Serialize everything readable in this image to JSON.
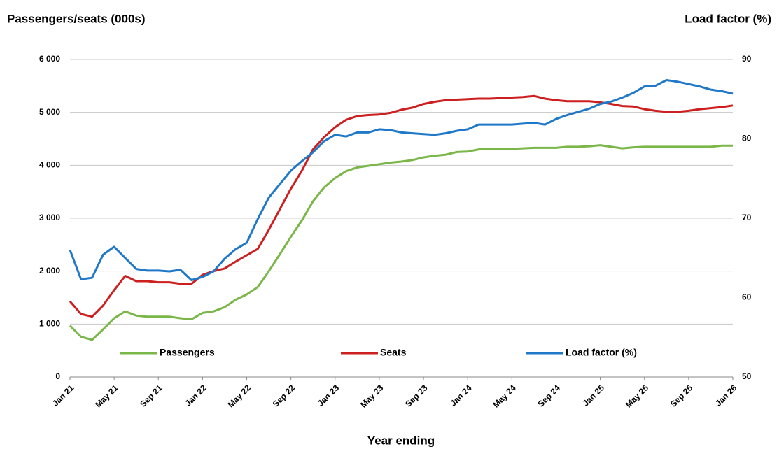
{
  "chart_data": {
    "type": "line",
    "y_label": "Passengers/seats (000s)",
    "y2_label": "Load factor (%)",
    "x_label": "Year ending",
    "categories": [
      "Jan 21",
      null,
      null,
      null,
      "May 21",
      null,
      null,
      null,
      "Sep 21",
      null,
      null,
      null,
      "Jan 22",
      null,
      null,
      null,
      "May 22",
      null,
      null,
      null,
      "Sep 22",
      null,
      null,
      null,
      "Jan 23",
      null,
      null,
      null,
      "May 23",
      null,
      null,
      null,
      "Sep 23",
      null,
      null,
      null,
      "Jan 24",
      null,
      null,
      null,
      "May 24",
      null,
      null,
      null,
      "Sep 24",
      null,
      null,
      null,
      "Jan 25",
      null,
      null,
      null,
      "May 25",
      null,
      null,
      null,
      "Sep 25",
      null,
      null,
      null,
      "Jan 26"
    ],
    "series": [
      {
        "name": "Passengers",
        "color": "#7ab648",
        "values": [
          970,
          760,
          700,
          900,
          1110,
          1240,
          1160,
          1140,
          1140,
          1140,
          1110,
          1090,
          1210,
          1240,
          1320,
          1460,
          1560,
          1700,
          2000,
          2320,
          2650,
          2960,
          3320,
          3580,
          3760,
          3890,
          3960,
          3990,
          4020,
          4050,
          4070,
          4100,
          4150,
          4180,
          4200,
          4250,
          4260,
          4300,
          4310,
          4310,
          4310,
          4320,
          4330,
          4330,
          4330,
          4350,
          4350,
          4360,
          4380,
          4350,
          4320,
          4340,
          4350,
          4350,
          4350,
          4350,
          4350,
          4350,
          4350,
          4370,
          4370
        ]
      },
      {
        "name": "Seats",
        "color": "#cc1f1f",
        "values": [
          1430,
          1190,
          1140,
          1350,
          1640,
          1910,
          1810,
          1810,
          1790,
          1790,
          1760,
          1760,
          1930,
          2000,
          2050,
          2180,
          2300,
          2420,
          2780,
          3170,
          3560,
          3900,
          4300,
          4530,
          4720,
          4860,
          4930,
          4950,
          4960,
          4990,
          5050,
          5090,
          5160,
          5200,
          5230,
          5240,
          5250,
          5260,
          5260,
          5270,
          5280,
          5290,
          5310,
          5260,
          5230,
          5210,
          5210,
          5210,
          5190,
          5160,
          5120,
          5110,
          5060,
          5030,
          5010,
          5010,
          5030,
          5060,
          5080,
          5100,
          5130
        ]
      },
      {
        "name": "Load factor (%)",
        "color": "#1f78c8",
        "axis": "y2",
        "values": [
          66.0,
          62.3,
          62.5,
          65.4,
          66.4,
          65.0,
          63.6,
          63.4,
          63.4,
          63.3,
          63.5,
          62.2,
          62.6,
          63.3,
          64.9,
          66.1,
          66.9,
          69.9,
          72.6,
          74.3,
          76.0,
          77.2,
          78.3,
          79.7,
          80.5,
          80.3,
          80.8,
          80.8,
          81.2,
          81.1,
          80.8,
          80.7,
          80.6,
          80.5,
          80.7,
          81.0,
          81.2,
          81.8,
          81.8,
          81.8,
          81.8,
          81.9,
          82.0,
          81.8,
          82.5,
          83.0,
          83.4,
          83.8,
          84.4,
          84.7,
          85.2,
          85.8,
          86.6,
          86.7,
          87.4,
          87.2,
          86.9,
          86.6,
          86.2,
          86.0,
          85.7
        ]
      }
    ],
    "ylim": [
      0,
      6000
    ],
    "yticks": [
      0,
      {
        "value": 1000,
        "label": "1 000"
      },
      {
        "value": 2000,
        "label": "2 000"
      },
      {
        "value": 3000,
        "label": "3 000"
      },
      {
        "value": 4000,
        "label": "4 000"
      },
      {
        "value": 5000,
        "label": "5 000"
      },
      {
        "value": 6000,
        "label": "6 000"
      }
    ],
    "y2lim": [
      50,
      90
    ],
    "y2ticks": [
      50,
      60,
      70,
      80,
      90
    ],
    "grid": true
  }
}
